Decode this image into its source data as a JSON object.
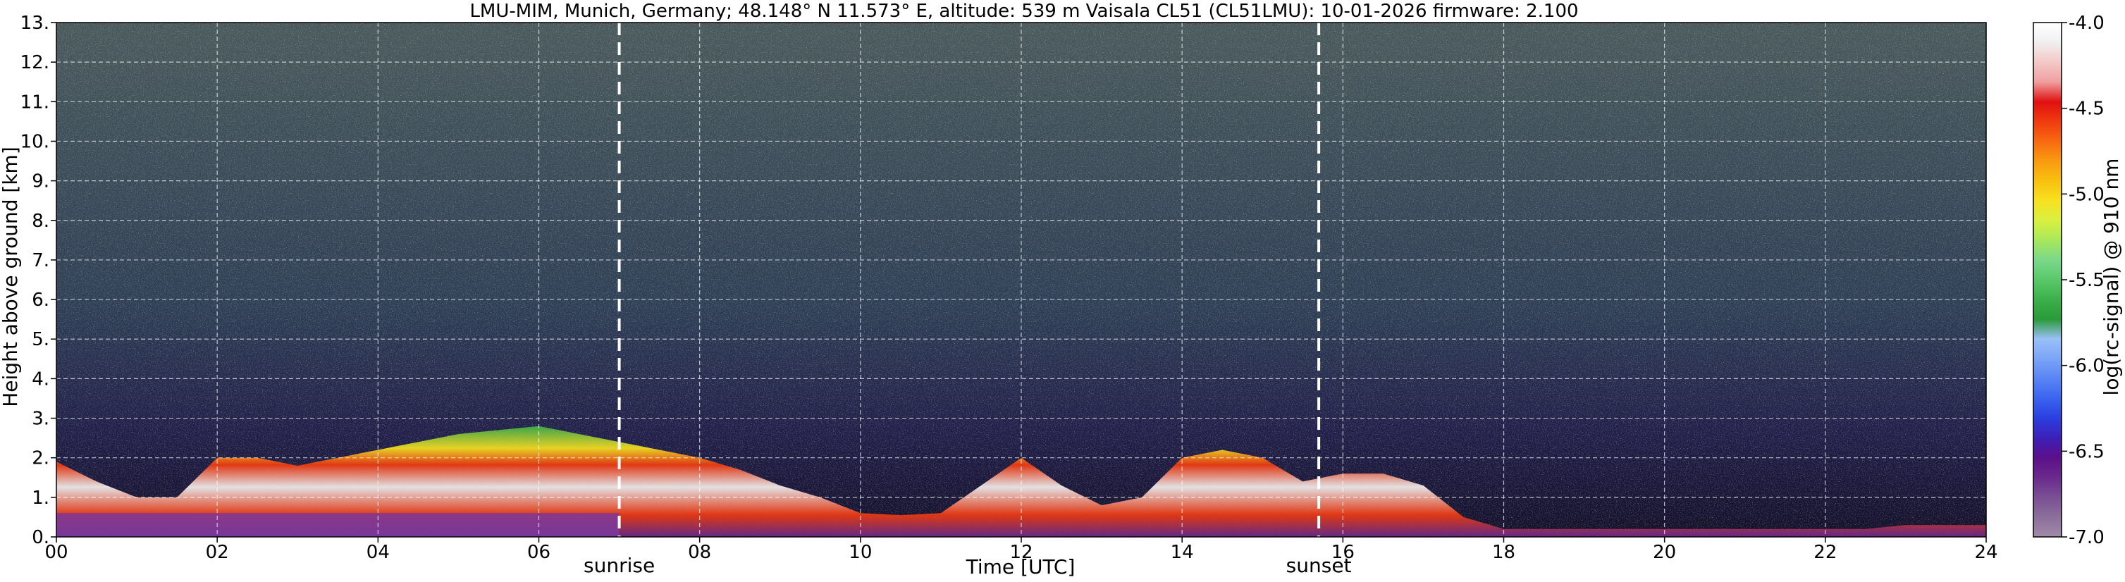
{
  "chart_data": {
    "type": "heatmap",
    "title": "LMU-MIM, Munich, Germany; 48.148° N 11.573° E, altitude: 539 m    Vaisala CL51 (CL51LMU): 10-01-2026    firmware: 2.100",
    "xlabel": "Time [UTC]",
    "ylabel": "Height above ground [km]",
    "xlim": [
      0,
      24
    ],
    "ylim": [
      0,
      13
    ],
    "x_ticks": [
      "00",
      "02",
      "04",
      "06",
      "08",
      "10",
      "12",
      "14",
      "16",
      "18",
      "20",
      "22",
      "24"
    ],
    "y_ticks": [
      "0.",
      "1.",
      "2.",
      "3.",
      "4.",
      "5.",
      "6.",
      "7.",
      "8.",
      "9.",
      "10.",
      "11.",
      "12.",
      "13."
    ],
    "grid": true,
    "colorbar": {
      "label": "log(rc-signal) @ 910 nm",
      "range": [
        -7.0,
        -4.0
      ],
      "ticks": [
        "-4.0",
        "-4.5",
        "-5.0",
        "-5.5",
        "-6.0",
        "-6.5",
        "-7.0"
      ],
      "colors": [
        "#a08aa8",
        "#8c6f9c",
        "#7a4f94",
        "#6a2a8c",
        "#5c0f8a",
        "#3d1fb8",
        "#2a3fe0",
        "#3a64f0",
        "#5a84f4",
        "#7aa4f6",
        "#9ac0f8",
        "#2a9a3a",
        "#3cb04a",
        "#5ac86a",
        "#7ad88a",
        "#a8e85a",
        "#d8f040",
        "#f8e020",
        "#f8c010",
        "#f89a10",
        "#f86a10",
        "#f03a10",
        "#e01010",
        "#f0a0a0",
        "#f4c8c8",
        "#f0f0f0",
        "#ffffff"
      ]
    },
    "vertical_markers": [
      {
        "label": "sunrise",
        "x": 7.0
      },
      {
        "label": "sunset",
        "x": 15.7
      }
    ],
    "series": [
      {
        "name": "",
        "x": [
          0,
          0.5,
          1,
          1.5,
          2,
          2.5,
          3,
          3.5,
          4,
          4.5,
          5,
          5.5,
          6,
          6.5,
          7,
          7.5,
          8,
          8.5,
          9,
          9.5,
          10,
          10.5,
          11,
          11.5,
          12,
          12.5,
          13,
          13.5,
          14,
          14.5,
          15,
          15.5,
          16,
          16.5,
          17,
          17.5,
          18,
          18.5,
          19,
          19.5,
          20,
          20.5,
          21,
          21.5,
          22,
          22.5,
          23,
          23.5,
          24
        ],
        "y": [
          1.9,
          1.4,
          1.0,
          1.0,
          2.0,
          2.0,
          1.8,
          2.0,
          2.2,
          2.4,
          2.6,
          2.7,
          2.8,
          2.6,
          2.4,
          2.2,
          2.0,
          1.7,
          1.3,
          1.0,
          0.6,
          0.55,
          0.6,
          1.3,
          2.0,
          1.3,
          0.8,
          1.0,
          2.0,
          2.2,
          2.0,
          1.4,
          1.6,
          1.6,
          1.3,
          0.5,
          0.2,
          0.2,
          0.2,
          0.2,
          0.2,
          0.2,
          0.2,
          0.2,
          0.2,
          0.2,
          0.3,
          0.3,
          0.3
        ]
      }
    ]
  }
}
